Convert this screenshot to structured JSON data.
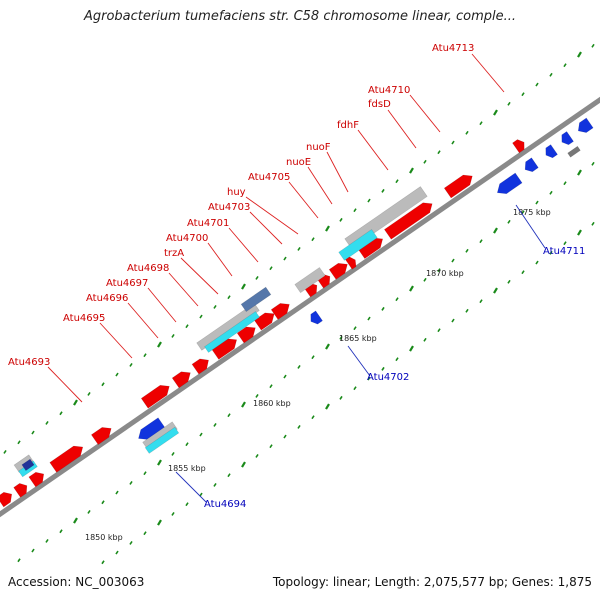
{
  "title": "Agrobacterium tumefaciens str. C58 chromosome linear, comple...",
  "footer": {
    "accession": "Accession: NC_003063",
    "summary": "Topology: linear; Length: 2,075,577 bp; Genes: 1,875"
  },
  "colors": {
    "backbone": "#8a8a8a",
    "forward_gene": "#ee0000",
    "reverse_gene": "#1133dd",
    "cyan_feature": "#33ddee",
    "gray_feature": "#bbbbbb",
    "steelblue_feature": "#5577aa",
    "tick": "#1a8a1a"
  },
  "genome_map": {
    "scale_labels": [
      "1850 kbp",
      "1855 kbp",
      "1860 kbp",
      "1865 kbp",
      "1870 kbp",
      "1875 kbp"
    ],
    "top_gene_labels": [
      "Atu4693",
      "Atu4695",
      "Atu4696",
      "Atu4697",
      "Atu4698",
      "trzA",
      "Atu4700",
      "Atu4701",
      "Atu4703",
      "huy",
      "Atu4705",
      "nuoE",
      "nuoF",
      "fdhF",
      "fdsD",
      "Atu4710",
      "Atu4713"
    ],
    "bottom_gene_labels": [
      "Atu4694",
      "Atu4702",
      "Atu4711"
    ]
  }
}
